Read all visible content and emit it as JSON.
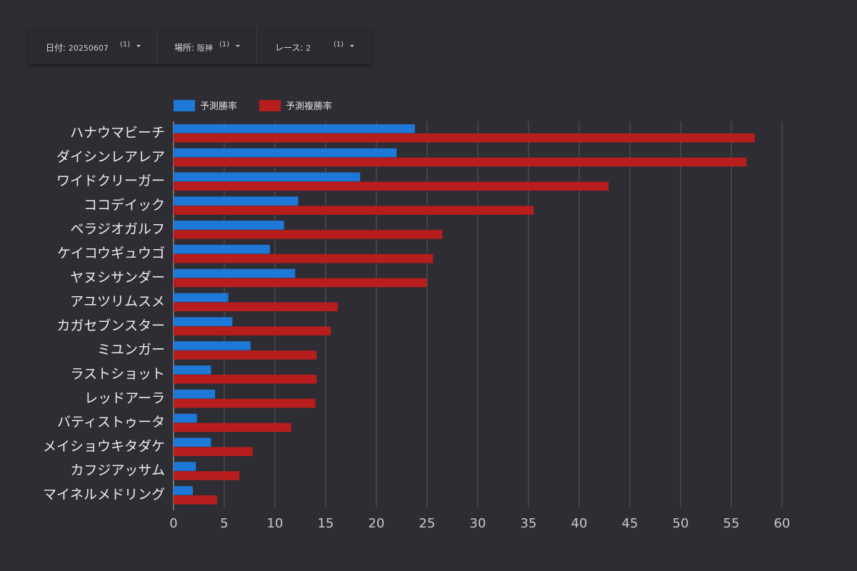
{
  "filters": [
    {
      "label": "日付",
      "value": "20250607",
      "count": "(1)"
    },
    {
      "label": "場所",
      "value": "阪神",
      "count": "(1)"
    },
    {
      "label": "レース",
      "value": "2",
      "count": "(1)"
    }
  ],
  "colors": {
    "series1": "#1e78d8",
    "series2": "#b81d1d",
    "grid": "#5a5960",
    "axis": "#8a8990",
    "label": "#eeeeee",
    "tick": "#c8c8c8"
  },
  "chart_data": {
    "type": "bar",
    "orientation": "horizontal",
    "title": "",
    "xlabel": "",
    "ylabel": "",
    "xlim": [
      0,
      60
    ],
    "xticks": [
      0,
      5,
      10,
      15,
      20,
      25,
      30,
      35,
      40,
      45,
      50,
      55,
      60
    ],
    "grid": true,
    "legend": "top-left",
    "categories": [
      "ハナウマビーチ",
      "ダイシンレアレア",
      "ワイドクリーガー",
      "ココデイック",
      "ベラジオガルフ",
      "ケイコウギュウゴ",
      "ヤヌシサンダー",
      "アユツリムスメ",
      "カガセブンスター",
      "ミユンガー",
      "ラストショット",
      "レッドアーラ",
      "バティストゥータ",
      "メイショウキタダケ",
      "カフジアッサム",
      "マイネルメドリング"
    ],
    "series": [
      {
        "name": "予測勝率",
        "values": [
          23.8,
          22.0,
          18.4,
          12.3,
          10.9,
          9.5,
          12.0,
          5.4,
          5.8,
          7.6,
          3.7,
          4.1,
          2.3,
          3.7,
          2.2,
          1.9
        ]
      },
      {
        "name": "予測複勝率",
        "values": [
          57.3,
          56.5,
          42.9,
          35.5,
          26.5,
          25.6,
          25.0,
          16.2,
          15.5,
          14.1,
          14.1,
          14.0,
          11.6,
          7.8,
          6.5,
          4.3
        ]
      }
    ]
  }
}
